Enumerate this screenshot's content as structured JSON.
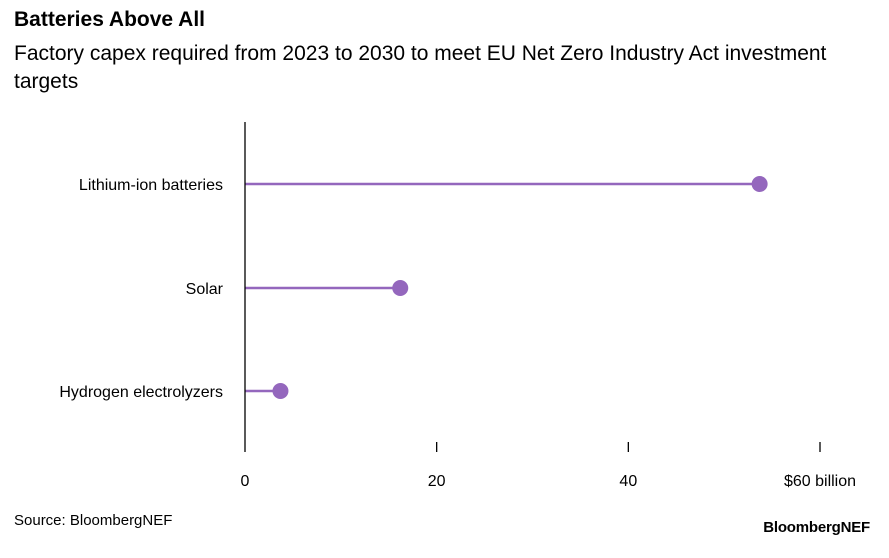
{
  "header": {
    "title": "Batteries Above All",
    "subtitle": "Factory capex required from 2023 to 2030 to meet EU Net Zero Industry Act investment targets"
  },
  "footer": {
    "source": "Source: BloombergNEF",
    "brand": "BloombergNEF"
  },
  "colors": {
    "series": "#9467bd",
    "axis": "#000000",
    "text": "#000000"
  },
  "chart_data": {
    "type": "bar",
    "style": "lollipop-horizontal",
    "title": "Batteries Above All",
    "subtitle": "Factory capex required from 2023 to 2030 to meet EU Net Zero Industry Act investment targets",
    "categories": [
      "Lithium-ion batteries",
      "Solar",
      "Hydrogen electrolyzers"
    ],
    "values": [
      53.7,
      16.2,
      3.7
    ],
    "xlabel": "",
    "ylabel": "",
    "xlim": [
      0,
      60
    ],
    "xticks": [
      0,
      20,
      40,
      60
    ],
    "xtick_labels": [
      "0",
      "20",
      "40",
      "$60 billion"
    ],
    "grid": false,
    "legend": "none"
  }
}
